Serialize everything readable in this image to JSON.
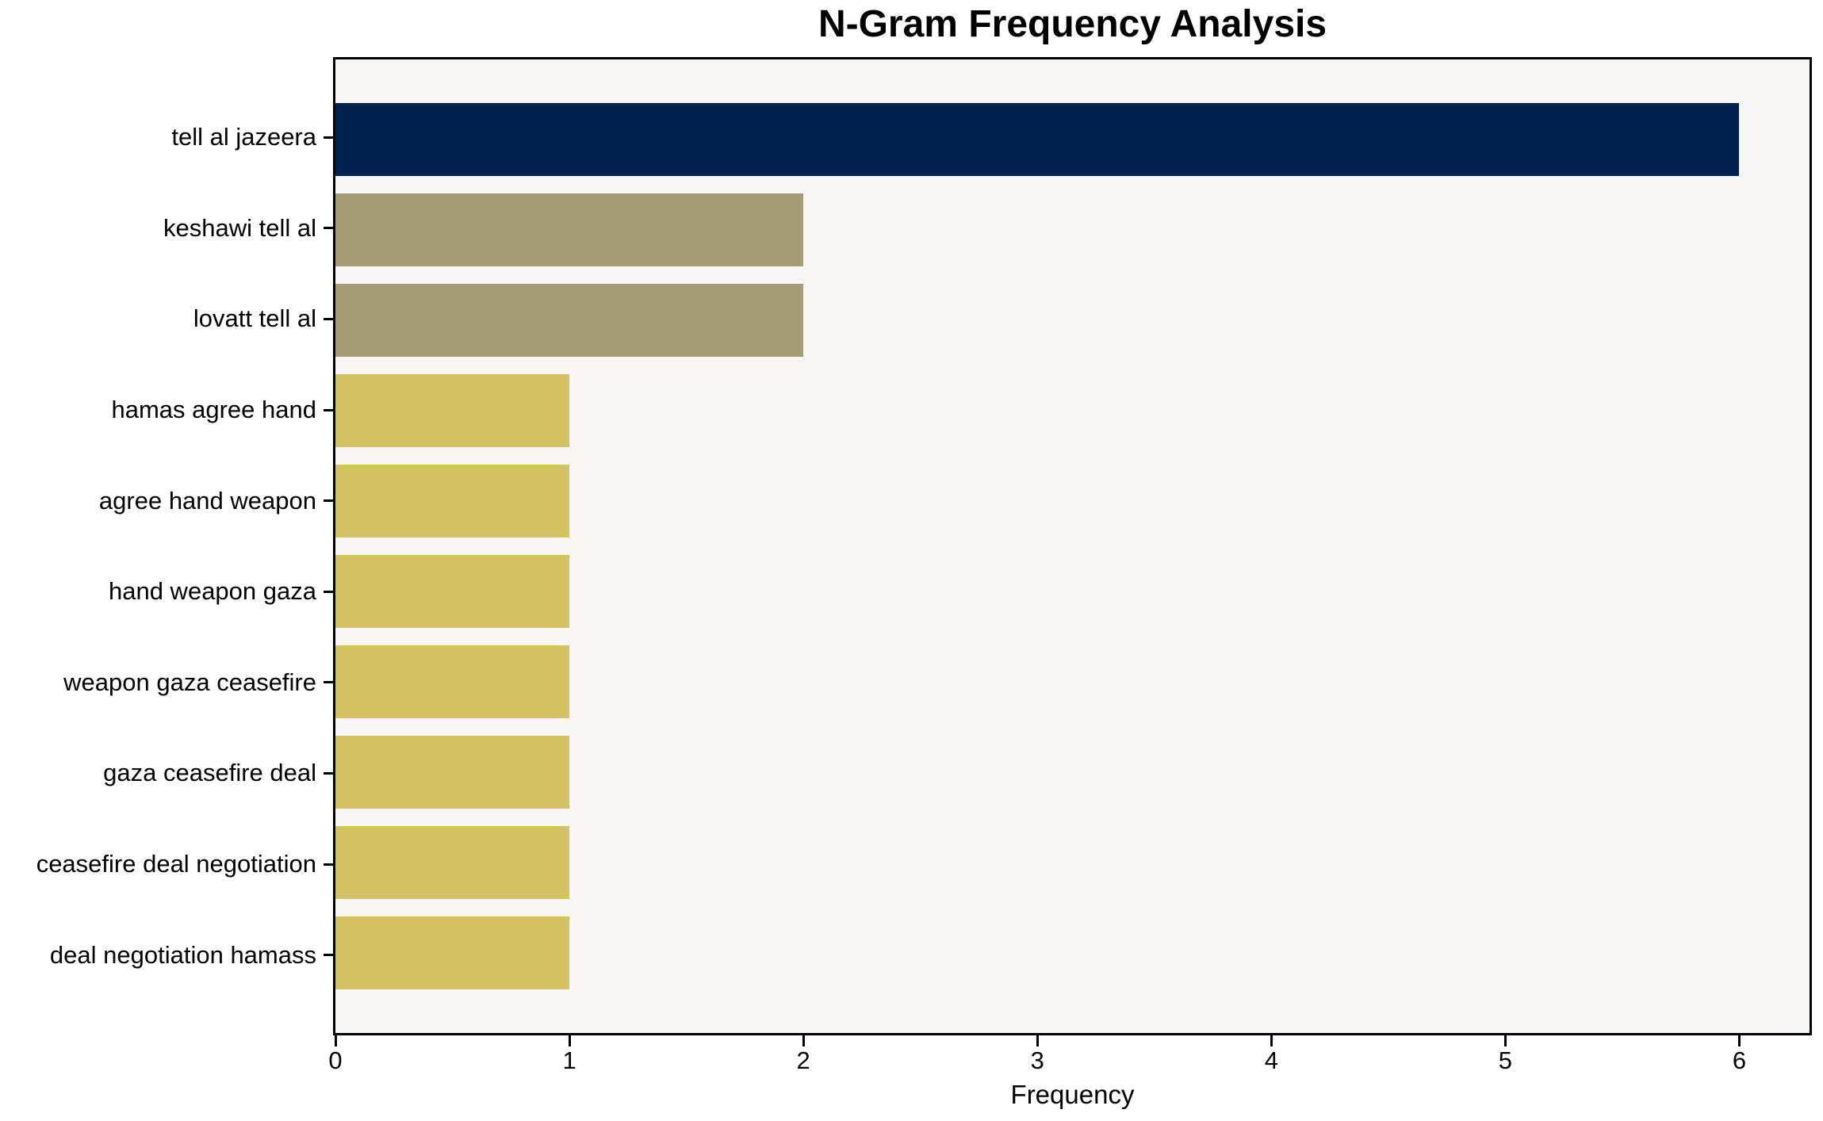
{
  "chart_data": {
    "type": "bar",
    "orientation": "horizontal",
    "title": "N-Gram Frequency Analysis",
    "xlabel": "Frequency",
    "ylabel": "",
    "categories": [
      "tell al jazeera",
      "keshawi tell al",
      "lovatt tell al",
      "hamas agree hand",
      "agree hand weapon",
      "hand weapon gaza",
      "weapon gaza ceasefire",
      "gaza ceasefire deal",
      "ceasefire deal negotiation",
      "deal negotiation hamass"
    ],
    "values": [
      6,
      2,
      2,
      1,
      1,
      1,
      1,
      1,
      1,
      1
    ],
    "bar_colors": [
      "#00224e",
      "#a39c74",
      "#a39c74",
      "#d3c262",
      "#d3c262",
      "#d3c262",
      "#d3c262",
      "#d3c262",
      "#d3c262",
      "#d3c262"
    ],
    "xticks": [
      0,
      1,
      2,
      3,
      4,
      5,
      6
    ],
    "xlim": [
      0,
      6.3
    ],
    "grid": false,
    "legend": null,
    "plot_background": "#f7f6f4",
    "figure_background": "#ffffff",
    "axis_color": "#000000"
  }
}
